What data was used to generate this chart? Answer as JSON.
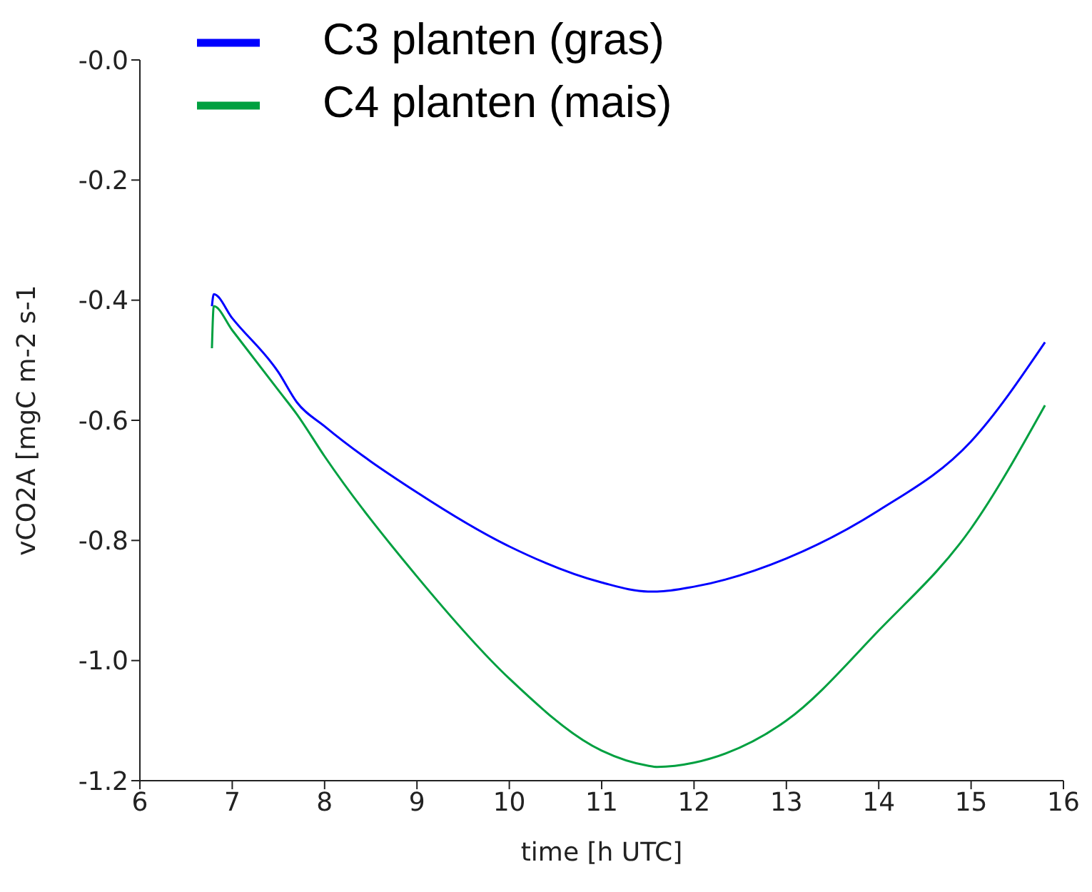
{
  "chart_data": {
    "type": "line",
    "xlabel": "time [h UTC]",
    "ylabel": "vCO2A [mgC m-2 s-1",
    "x": [
      6.78,
      6.8,
      7,
      7.5,
      7.7,
      8,
      9,
      10,
      11,
      11.5,
      11.6,
      12,
      13,
      14,
      15,
      15.8
    ],
    "series": [
      {
        "name": "C3 planten (gras)",
        "color": "#0000ff",
        "values": [
          -0.41,
          -0.39,
          -0.43,
          -0.52,
          -0.57,
          -0.61,
          -0.72,
          -0.81,
          -0.87,
          -0.885,
          -0.885,
          -0.877,
          -0.83,
          -0.75,
          -0.635,
          -0.47
        ]
      },
      {
        "name": "C4 planten (mais)",
        "color": "#00a040",
        "values": [
          -0.48,
          -0.41,
          -0.45,
          -0.55,
          -0.59,
          -0.66,
          -0.86,
          -1.03,
          -1.15,
          -1.175,
          -1.177,
          -1.17,
          -1.1,
          -0.95,
          -0.78,
          -0.575
        ]
      }
    ],
    "xlim": [
      6,
      16
    ],
    "xticks": [
      6,
      7,
      8,
      9,
      10,
      11,
      12,
      13,
      14,
      15,
      16
    ],
    "ylim": [
      -1.2,
      0
    ],
    "yticks": [
      {
        "value": 0,
        "label": "-0.0"
      },
      {
        "value": -0.2,
        "label": "-0.2"
      },
      {
        "value": -0.4,
        "label": "-0.4"
      },
      {
        "value": -0.6,
        "label": "-0.6"
      },
      {
        "value": -0.8,
        "label": "-0.8"
      },
      {
        "value": -1.0,
        "label": "-1.0"
      },
      {
        "value": -1.2,
        "label": "-1.2"
      }
    ],
    "grid": false,
    "legend": "top left",
    "marker": "none",
    "line_style": "solid"
  }
}
